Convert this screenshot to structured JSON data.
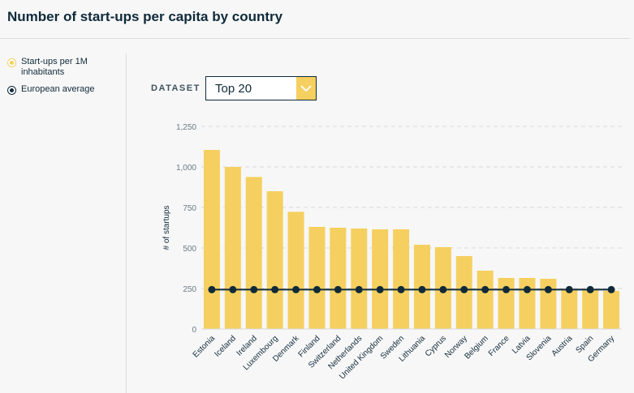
{
  "title": "Number of start-ups per capita by country",
  "legend": [
    {
      "label": "Start-ups per 1M inhabitants",
      "color": "#f5d060",
      "icon": "circle-yellow"
    },
    {
      "label": "European average",
      "color": "#102a3a",
      "icon": "circle-dark"
    }
  ],
  "dataset": {
    "label": "DATASET",
    "selected": "Top 20"
  },
  "colors": {
    "bar": "#f5d060",
    "line": "#102a3a",
    "grid": "#d8d8d8",
    "axis_text": "#6b7b85"
  },
  "chart_data": {
    "type": "bar",
    "ylabel": "# of startups",
    "xlabel": "",
    "ylim": [
      0,
      1250
    ],
    "yticks": [
      0,
      250,
      500,
      750,
      1000,
      1250
    ],
    "ytick_labels": [
      "0",
      "250",
      "500",
      "750",
      "1,000",
      "1,250"
    ],
    "grid": true,
    "categories": [
      "Estonia",
      "Iceland",
      "Ireland",
      "Luxembourg",
      "Denmark",
      "Finland",
      "Switzerland",
      "Netherlands",
      "United Kingdom",
      "Sweden",
      "Lithuania",
      "Cyprus",
      "Norway",
      "Belgium",
      "France",
      "Latvia",
      "Slovenia",
      "Austria",
      "Spain",
      "Germany"
    ],
    "series": [
      {
        "name": "Start-ups per 1M inhabitants",
        "type": "bar",
        "values": [
          1105,
          1000,
          938,
          850,
          723,
          630,
          625,
          620,
          615,
          615,
          520,
          505,
          450,
          360,
          315,
          315,
          310,
          240,
          240,
          235
        ]
      },
      {
        "name": "European average",
        "type": "line",
        "values": [
          243,
          243,
          243,
          243,
          243,
          243,
          243,
          243,
          243,
          243,
          243,
          243,
          243,
          243,
          243,
          243,
          243,
          243,
          243,
          243
        ]
      }
    ]
  }
}
